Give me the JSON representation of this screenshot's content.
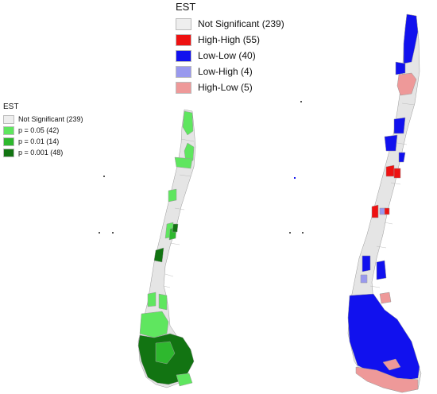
{
  "left_legend": {
    "title": "EST",
    "items": [
      {
        "label": "Not Significant (239)",
        "color": "#eeeeee"
      },
      {
        "label": "p = 0.05 (42)",
        "color": "#5fe65f"
      },
      {
        "label": "p = 0.01 (14)",
        "color": "#2eb82e"
      },
      {
        "label": "p = 0.001 (48)",
        "color": "#127412"
      }
    ]
  },
  "right_legend": {
    "title": "EST",
    "items": [
      {
        "label": "Not Significant (239)",
        "color": "#eeeeee"
      },
      {
        "label": "High-High (55)",
        "color": "#ee1111"
      },
      {
        "label": "Low-Low (40)",
        "color": "#1111ee"
      },
      {
        "label": "Low-High (4)",
        "color": "#9999ee"
      },
      {
        "label": "High-Low (5)",
        "color": "#ee9999"
      }
    ]
  },
  "colors": {
    "base": "#e5e5e5",
    "border": "#9a9a9a"
  }
}
